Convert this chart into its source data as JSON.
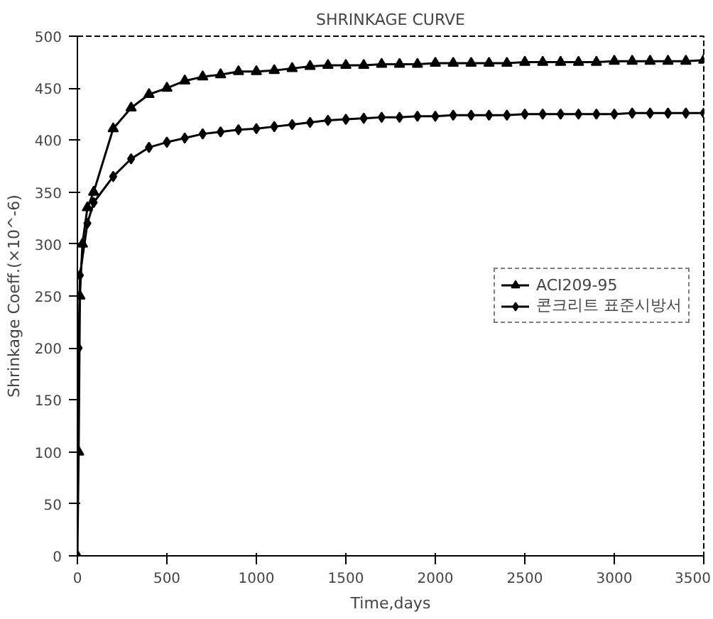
{
  "chart_data": {
    "type": "line",
    "title": "SHRINKAGE CURVE",
    "xlabel": "Time,days",
    "ylabel": "Shrinkage Coeff.(×10^-6)",
    "xlim": [
      0,
      3500
    ],
    "xticks": [
      0,
      500,
      1000,
      1500,
      2000,
      2500,
      3000,
      3500
    ],
    "ylim": [
      0,
      500
    ],
    "yticks": [
      0,
      50,
      100,
      150,
      200,
      250,
      300,
      350,
      400,
      450,
      500
    ],
    "grid": false,
    "legend": "right",
    "line_style": "solid",
    "series": [
      {
        "name": "ACI209-95",
        "color": "#000000",
        "marker": "triangle",
        "x": [
          0,
          7,
          14,
          28,
          56,
          91,
          200,
          300,
          400,
          500,
          600,
          700,
          800,
          900,
          1000,
          1100,
          1200,
          1300,
          1400,
          1500,
          1600,
          1700,
          1800,
          1900,
          2000,
          2100,
          2200,
          2300,
          2400,
          2500,
          2600,
          2700,
          2800,
          2900,
          3000,
          3100,
          3200,
          3300,
          3400,
          3500
        ],
        "values": [
          0,
          100,
          250,
          300,
          335,
          350,
          411,
          431,
          444,
          450,
          457,
          461,
          463,
          466,
          466,
          467,
          469,
          471,
          472,
          472,
          472,
          473,
          473,
          473,
          474,
          474,
          474,
          474,
          474,
          475,
          475,
          475,
          475,
          475,
          476,
          476,
          476,
          476,
          476,
          477
        ]
      },
      {
        "name": "콘크리트 표준시방서",
        "color": "#000000",
        "marker": "diamond",
        "x": [
          0,
          7,
          14,
          56,
          91,
          200,
          300,
          400,
          500,
          600,
          700,
          800,
          900,
          1000,
          1100,
          1200,
          1300,
          1400,
          1500,
          1600,
          1700,
          1800,
          1900,
          2000,
          2100,
          2200,
          2300,
          2400,
          2500,
          2600,
          2700,
          2800,
          2900,
          3000,
          3100,
          3200,
          3300,
          3400,
          3500
        ],
        "values": [
          100,
          200,
          270,
          320,
          340,
          365,
          382,
          393,
          398,
          402,
          406,
          408,
          410,
          411,
          413,
          415,
          417,
          419,
          420,
          421,
          422,
          422,
          423,
          423,
          424,
          424,
          424,
          424,
          425,
          425,
          425,
          425,
          425,
          425,
          426,
          426,
          426,
          426,
          426
        ]
      }
    ]
  }
}
